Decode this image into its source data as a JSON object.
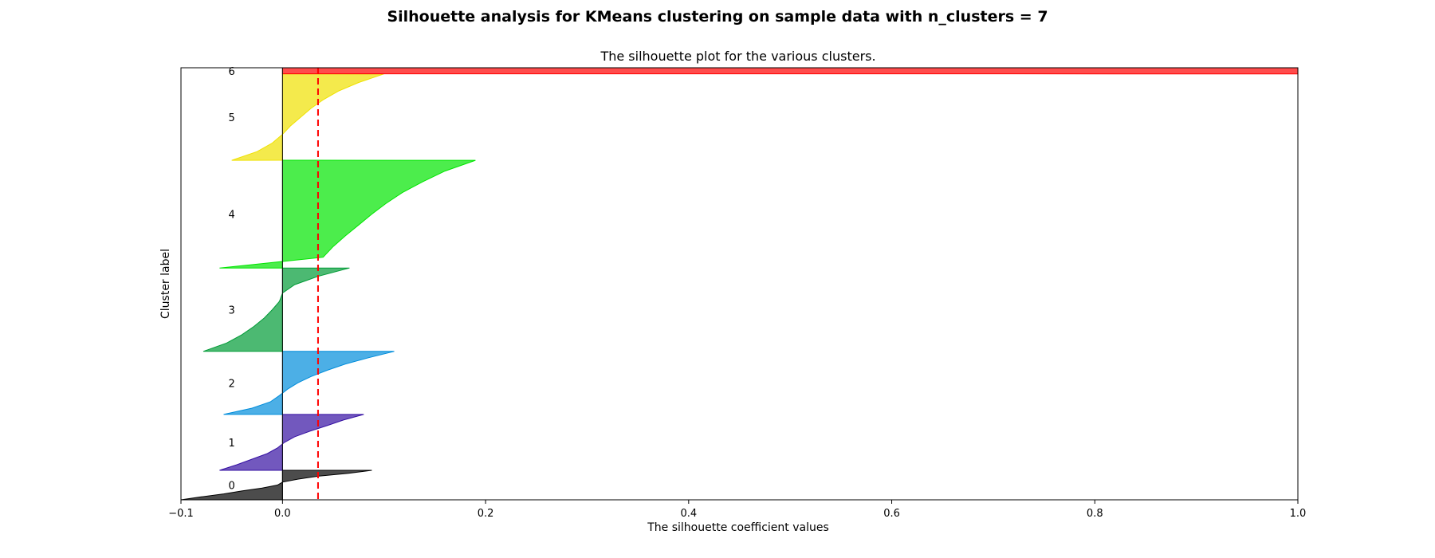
{
  "figure": {
    "suptitle": "Silhouette analysis for KMeans clustering on sample data with n_clusters = 7"
  },
  "chart_data": {
    "type": "area",
    "title": "The silhouette plot for the various clusters.",
    "xlabel": "The silhouette coefficient values",
    "ylabel": "Cluster label",
    "xlim": [
      -0.1,
      1.0
    ],
    "ylim": [
      0,
      425
    ],
    "xticks": [
      -0.1,
      0.0,
      0.2,
      0.4,
      0.6,
      0.8,
      1.0
    ],
    "xtick_labels": [
      "−0.1",
      "0.0",
      "0.2",
      "0.4",
      "0.6",
      "0.8",
      "1.0"
    ],
    "yticks": [],
    "grid": false,
    "average_silhouette": 0.035,
    "average_line_color": "#ff0000",
    "clusters": [
      {
        "label": "0",
        "y_lower": 0,
        "y_upper": 29,
        "color": "#000000",
        "profile": [
          [
            0.0,
            -0.1
          ],
          [
            0.1,
            -0.08
          ],
          [
            0.2,
            -0.058
          ],
          [
            0.3,
            -0.04
          ],
          [
            0.4,
            -0.02
          ],
          [
            0.5,
            -0.005
          ],
          [
            0.6,
            0.0
          ],
          [
            0.7,
            0.015
          ],
          [
            0.8,
            0.035
          ],
          [
            0.9,
            0.065
          ],
          [
            1.0,
            0.088
          ]
        ]
      },
      {
        "label": "1",
        "y_lower": 29,
        "y_upper": 84,
        "color": "#3611a3",
        "profile": [
          [
            0.0,
            -0.062
          ],
          [
            0.1,
            -0.045
          ],
          [
            0.2,
            -0.03
          ],
          [
            0.3,
            -0.015
          ],
          [
            0.4,
            -0.005
          ],
          [
            0.5,
            0.002
          ],
          [
            0.6,
            0.012
          ],
          [
            0.7,
            0.027
          ],
          [
            0.8,
            0.044
          ],
          [
            0.9,
            0.06
          ],
          [
            1.0,
            0.08
          ]
        ]
      },
      {
        "label": "2",
        "y_lower": 84,
        "y_upper": 146,
        "color": "#008ddb",
        "profile": [
          [
            0.0,
            -0.058
          ],
          [
            0.1,
            -0.03
          ],
          [
            0.2,
            -0.012
          ],
          [
            0.3,
            -0.003
          ],
          [
            0.4,
            0.005
          ],
          [
            0.5,
            0.015
          ],
          [
            0.6,
            0.028
          ],
          [
            0.7,
            0.044
          ],
          [
            0.8,
            0.062
          ],
          [
            0.9,
            0.085
          ],
          [
            1.0,
            0.11
          ]
        ]
      },
      {
        "label": "3",
        "y_lower": 146,
        "y_upper": 228,
        "color": "#009b36",
        "profile": [
          [
            0.0,
            -0.078
          ],
          [
            0.1,
            -0.055
          ],
          [
            0.2,
            -0.04
          ],
          [
            0.3,
            -0.028
          ],
          [
            0.4,
            -0.018
          ],
          [
            0.5,
            -0.01
          ],
          [
            0.6,
            -0.003
          ],
          [
            0.7,
            0.0
          ],
          [
            0.8,
            0.012
          ],
          [
            0.9,
            0.035
          ],
          [
            1.0,
            0.066
          ]
        ]
      },
      {
        "label": "4",
        "y_lower": 228,
        "y_upper": 334,
        "color": "#00e500",
        "profile": [
          [
            0.0,
            -0.062
          ],
          [
            0.1,
            0.04
          ],
          [
            0.2,
            0.05
          ],
          [
            0.3,
            0.062
          ],
          [
            0.4,
            0.075
          ],
          [
            0.5,
            0.088
          ],
          [
            0.6,
            0.102
          ],
          [
            0.7,
            0.118
          ],
          [
            0.8,
            0.138
          ],
          [
            0.9,
            0.16
          ],
          [
            1.0,
            0.19
          ]
        ]
      },
      {
        "label": "5",
        "y_lower": 334,
        "y_upper": 419,
        "color": "#efe100",
        "profile": [
          [
            0.0,
            -0.05
          ],
          [
            0.1,
            -0.025
          ],
          [
            0.2,
            -0.01
          ],
          [
            0.3,
            0.0
          ],
          [
            0.4,
            0.008
          ],
          [
            0.5,
            0.018
          ],
          [
            0.6,
            0.028
          ],
          [
            0.7,
            0.04
          ],
          [
            0.8,
            0.055
          ],
          [
            0.9,
            0.075
          ],
          [
            1.0,
            0.1
          ]
        ]
      },
      {
        "label": "6",
        "y_lower": 419,
        "y_upper": 425,
        "color": "#ff0000",
        "profile": [
          [
            0.0,
            1.0
          ],
          [
            1.0,
            1.0
          ]
        ]
      }
    ]
  }
}
